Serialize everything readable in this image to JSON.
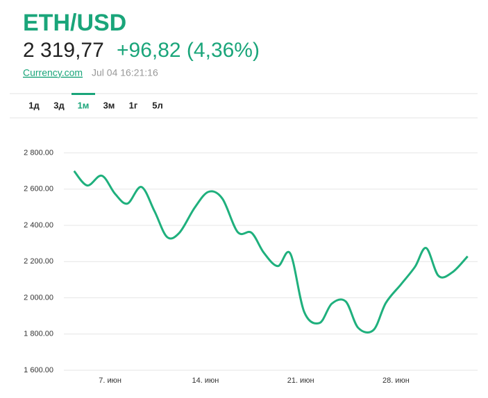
{
  "header": {
    "title": "ETH/USD",
    "price": "2 319,77",
    "change": "+96,82 (4,36%)",
    "source": "Currency.com",
    "timestamp": "Jul 04 16:21:16"
  },
  "tabs": [
    "1д",
    "3д",
    "1м",
    "3м",
    "1г",
    "5л"
  ],
  "chart_data": {
    "type": "line",
    "x": [
      4.35,
      5.32,
      6.39,
      7.36,
      8.27,
      9.29,
      10.26,
      11.18,
      12.09,
      13.21,
      14.23,
      15.25,
      16.37,
      17.39,
      18.3,
      19.32,
      20.24,
      21.26,
      22.38,
      23.29,
      24.31,
      25.23,
      26.35,
      27.26,
      28.38,
      29.4,
      30.22,
      31.13,
      32.15,
      33.27
    ],
    "values": [
      2700,
      2620,
      2674,
      2574,
      2520,
      2612,
      2478,
      2336,
      2359,
      2497,
      2585,
      2547,
      2363,
      2359,
      2248,
      2175,
      2244,
      1922,
      1861,
      1968,
      1980,
      1834,
      1822,
      1972,
      2075,
      2171,
      2275,
      2121,
      2141,
      2229
    ],
    "color": "#1fb07d",
    "xlim": [
      3.6,
      34.0
    ],
    "xticks": [
      {
        "value": 7,
        "label": "7. июн"
      },
      {
        "value": 14,
        "label": "14. июн"
      },
      {
        "value": 21,
        "label": "21. июн"
      },
      {
        "value": 28,
        "label": "28. июн"
      }
    ],
    "ylim": [
      1558,
      2840
    ],
    "yticks": [
      {
        "value": 1600,
        "label": "1 600.00"
      },
      {
        "value": 1800,
        "label": "1 800.00"
      },
      {
        "value": 2000,
        "label": "2 000.00"
      },
      {
        "value": 2200,
        "label": "2 200.00"
      },
      {
        "value": 2400,
        "label": "2 400.00"
      },
      {
        "value": 2600,
        "label": "2 600.00"
      },
      {
        "value": 2800,
        "label": "2 800.00"
      }
    ],
    "grid": true
  }
}
